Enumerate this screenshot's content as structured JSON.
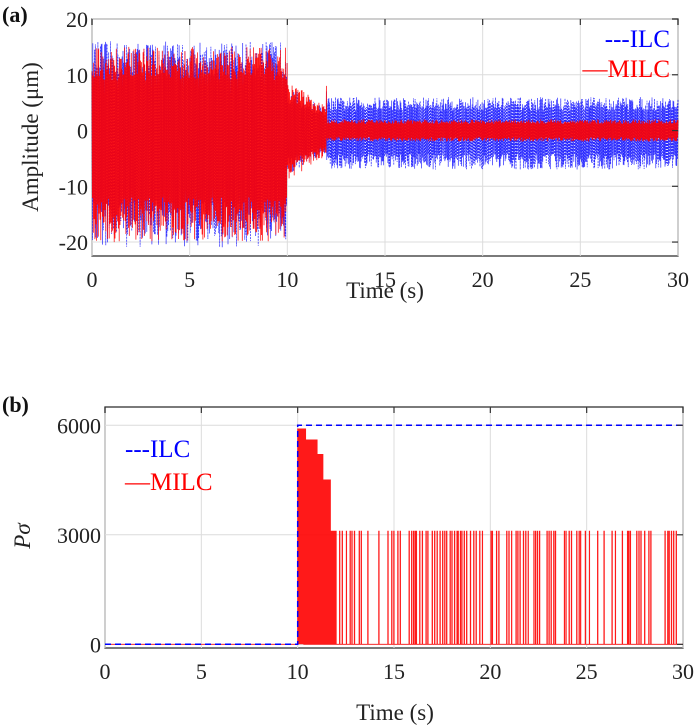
{
  "chart_data": [
    {
      "panel": "(a)",
      "type": "line",
      "title": "",
      "xlabel": "Time (s)",
      "ylabel": "Amplitude (μm)",
      "xlim": [
        0,
        30
      ],
      "ylim": [
        -22.5,
        20
      ],
      "xticks": [
        0,
        5,
        10,
        15,
        20,
        25,
        30
      ],
      "yticks": [
        -20,
        -10,
        0,
        10,
        20
      ],
      "grid": true,
      "legend": {
        "placement": "top-right",
        "entries": [
          {
            "label": "---ILC",
            "color": "#0000ff",
            "style": "dashed"
          },
          {
            "label": "—MILC",
            "color": "#ff0000",
            "style": "solid"
          }
        ]
      },
      "series": [
        {
          "name": "ILC",
          "color": "#0000ff",
          "style": "dashed",
          "description": "dense oscillation envelope",
          "envelope": [
            {
              "t_range": [
                0,
                10
              ],
              "upper": 16,
              "lower": -21
            },
            {
              "t_range": [
                10,
                12
              ],
              "upper": 8,
              "lower": -8
            },
            {
              "t_range": [
                12,
                30
              ],
              "upper": 6,
              "lower": -7
            }
          ]
        },
        {
          "name": "MILC",
          "color": "#ff0000",
          "style": "solid",
          "description": "dense oscillation envelope",
          "envelope": [
            {
              "t_range": [
                0,
                10
              ],
              "upper": 15,
              "lower": -20
            },
            {
              "t_range": [
                10,
                12
              ],
              "upper": 9,
              "lower": -9
            },
            {
              "t_range": [
                12,
                30
              ],
              "upper": 2,
              "lower": -2
            }
          ]
        }
      ]
    },
    {
      "panel": "(b)",
      "type": "line",
      "title": "",
      "xlabel": "Time (s)",
      "ylabel": "Pσ",
      "xlim": [
        0,
        30
      ],
      "ylim": [
        -100,
        6500
      ],
      "xticks": [
        0,
        5,
        10,
        15,
        20,
        25,
        30
      ],
      "yticks": [
        0,
        3000,
        6000
      ],
      "grid": true,
      "legend": {
        "placement": "top-left",
        "entries": [
          {
            "label": "---ILC",
            "color": "#0000ff",
            "style": "dashed"
          },
          {
            "label": "—MILC",
            "color": "#ff0000",
            "style": "solid"
          }
        ]
      },
      "series": [
        {
          "name": "ILC",
          "color": "#0000ff",
          "style": "dashed",
          "x": [
            0,
            10,
            10,
            30
          ],
          "y": [
            0,
            0,
            6000,
            6000
          ]
        },
        {
          "name": "MILC",
          "color": "#ff0000",
          "style": "solid",
          "description": "switching between 0 and a decreasing staircase after t=10, then between 0 and 3000",
          "staircase_upper": [
            {
              "t_range": [
                10,
                10.4
              ],
              "value": 5900
            },
            {
              "t_range": [
                10.4,
                11.0
              ],
              "value": 5600
            },
            {
              "t_range": [
                11.0,
                11.3
              ],
              "value": 5200
            },
            {
              "t_range": [
                11.3,
                11.7
              ],
              "value": 4500
            },
            {
              "t_range": [
                11.7,
                30
              ],
              "value": 3100
            }
          ],
          "lower": 0
        }
      ]
    }
  ]
}
